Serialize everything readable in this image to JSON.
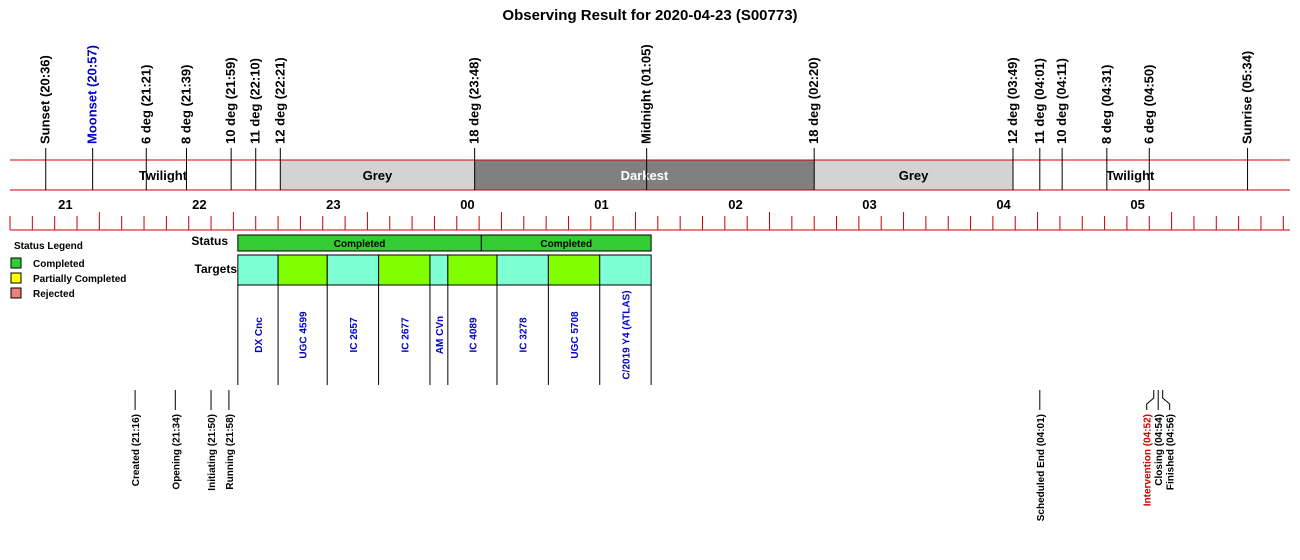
{
  "chart_data": {
    "type": "timeline",
    "title": "Observing Result for 2020-04-23 (S00773)",
    "x_range": [
      "20:20",
      "05:53"
    ],
    "night_events": [
      {
        "label": "Sunset (20:36)",
        "time": "20:36",
        "color": "#000000"
      },
      {
        "label": "Moonset (20:57)",
        "time": "20:57",
        "color": "#0000cc"
      },
      {
        "label": "6 deg (21:21)",
        "time": "21:21",
        "color": "#000000"
      },
      {
        "label": "8 deg (21:39)",
        "time": "21:39",
        "color": "#000000"
      },
      {
        "label": "10 deg (21:59)",
        "time": "21:59",
        "color": "#000000"
      },
      {
        "label": "11 deg (22:10)",
        "time": "22:10",
        "color": "#000000"
      },
      {
        "label": "12 deg (22:21)",
        "time": "22:21",
        "color": "#000000"
      },
      {
        "label": "18 deg (23:48)",
        "time": "23:48",
        "color": "#000000"
      },
      {
        "label": "Midnight (01:05)",
        "time": "01:05",
        "color": "#000000"
      },
      {
        "label": "18 deg (02:20)",
        "time": "02:20",
        "color": "#000000"
      },
      {
        "label": "12 deg (03:49)",
        "time": "03:49",
        "color": "#000000"
      },
      {
        "label": "11 deg (04:01)",
        "time": "04:01",
        "color": "#000000"
      },
      {
        "label": "10 deg (04:11)",
        "time": "04:11",
        "color": "#000000"
      },
      {
        "label": "8 deg (04:31)",
        "time": "04:31",
        "color": "#000000"
      },
      {
        "label": "6 deg (04:50)",
        "time": "04:50",
        "color": "#000000"
      },
      {
        "label": "Sunrise (05:34)",
        "time": "05:34",
        "color": "#000000"
      }
    ],
    "sky_bands": [
      {
        "label": "Twilight",
        "start": "20:36",
        "end": "22:21",
        "fill": "#ffffff",
        "text_color": "#000000"
      },
      {
        "label": "Grey",
        "start": "22:21",
        "end": "23:48",
        "fill": "#d3d3d3",
        "text_color": "#000000"
      },
      {
        "label": "Darkest",
        "start": "23:48",
        "end": "02:20",
        "fill": "#808080",
        "text_color": "#ffffff"
      },
      {
        "label": "Grey",
        "start": "02:20",
        "end": "03:49",
        "fill": "#d3d3d3",
        "text_color": "#000000"
      },
      {
        "label": "Twilight",
        "start": "03:49",
        "end": "05:34",
        "fill": "#ffffff",
        "text_color": "#000000"
      }
    ],
    "hour_labels": [
      "21",
      "22",
      "23",
      "00",
      "01",
      "02",
      "03",
      "04",
      "05"
    ],
    "legend": {
      "title": "Status Legend",
      "items": [
        {
          "label": "Completed",
          "color": "#33cc33"
        },
        {
          "label": "Partially Completed",
          "color": "#ffff00"
        },
        {
          "label": "Rejected",
          "color": "#f08080"
        }
      ]
    },
    "row_labels": {
      "status": "Status",
      "targets": "Targets"
    },
    "status_blocks": [
      {
        "label": "Completed",
        "start": "22:02",
        "end": "23:51",
        "color": "#33cc33"
      },
      {
        "label": "Completed",
        "start": "23:51",
        "end": "01:07",
        "color": "#33cc33"
      }
    ],
    "targets": [
      {
        "name": "DX Cnc",
        "start": "22:02",
        "end": "22:20",
        "color": "#7fffd4"
      },
      {
        "name": "UGC 4599",
        "start": "22:20",
        "end": "22:42",
        "color": "#7fff00"
      },
      {
        "name": "IC 2657",
        "start": "22:42",
        "end": "23:05",
        "color": "#7fffd4"
      },
      {
        "name": "IC 2677",
        "start": "23:05",
        "end": "23:28",
        "color": "#7fff00"
      },
      {
        "name": "AM CVn",
        "start": "23:28",
        "end": "23:36",
        "color": "#7fffd4"
      },
      {
        "name": "IC 4089",
        "start": "23:36",
        "end": "23:58",
        "color": "#7fff00"
      },
      {
        "name": "IC 3278",
        "start": "23:58",
        "end": "00:21",
        "color": "#7fffd4"
      },
      {
        "name": "UGC 5708",
        "start": "00:21",
        "end": "00:44",
        "color": "#7fff00"
      },
      {
        "name": "C/2019 Y4 (ATLAS)",
        "start": "00:44",
        "end": "01:07",
        "color": "#7fffd4"
      }
    ],
    "operation_events": [
      {
        "label": "Created (21:16)",
        "time": "21:16",
        "color": "#000000",
        "offset": 0
      },
      {
        "label": "Opening (21:34)",
        "time": "21:34",
        "color": "#000000",
        "offset": 0
      },
      {
        "label": "Initiating (21:50)",
        "time": "21:50",
        "color": "#000000",
        "offset": 0
      },
      {
        "label": "Running (21:58)",
        "time": "21:58",
        "color": "#000000",
        "offset": 0
      },
      {
        "label": "Scheduled End (04:01)",
        "time": "04:01",
        "color": "#000000",
        "offset": 0
      },
      {
        "label": "Intervention (04:52)",
        "time": "04:52",
        "color": "#cc0000",
        "offset": -1
      },
      {
        "label": "Closing (04:54)",
        "time": "04:54",
        "color": "#000000",
        "offset": 0
      },
      {
        "label": "Finished (04:56)",
        "time": "04:56",
        "color": "#000000",
        "offset": 1
      }
    ],
    "colors": {
      "axis_red": "#cc0000",
      "target_text": "#0000cc"
    }
  }
}
